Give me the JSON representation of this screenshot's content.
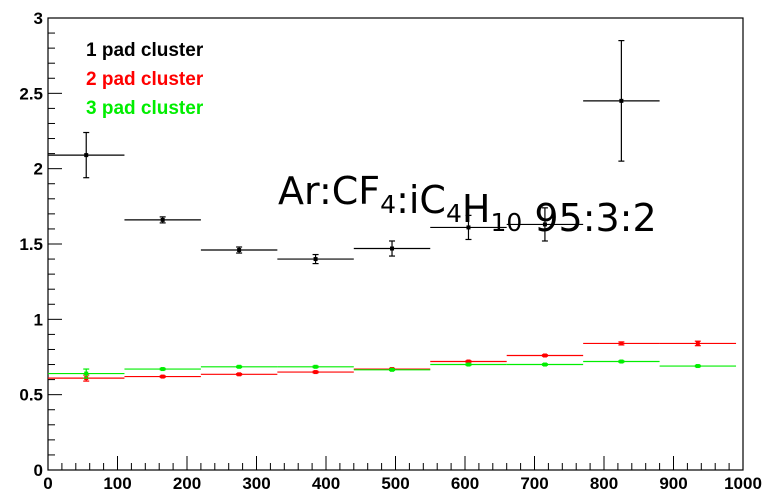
{
  "chart_data": {
    "type": "scatter",
    "title": "",
    "xlabel": "",
    "ylabel": "",
    "xlim": [
      0,
      1000
    ],
    "ylim": [
      0,
      3
    ],
    "x_ticks": [
      "0",
      "100",
      "200",
      "300",
      "400",
      "500",
      "600",
      "700",
      "800",
      "900",
      "1000"
    ],
    "y_ticks": [
      "0",
      "0.5",
      "1",
      "1.5",
      "2",
      "2.5",
      "3"
    ],
    "grid": false,
    "legend_position": "top-left",
    "annotation": {
      "parts": [
        {
          "text": "Ar:CF",
          "sub": false
        },
        {
          "text": "4",
          "sub": true
        },
        {
          "text": ":iC",
          "sub": false
        },
        {
          "text": "4",
          "sub": true
        },
        {
          "text": "H",
          "sub": false
        },
        {
          "text": "10",
          "sub": true
        },
        {
          "text": " 95:3:2",
          "sub": false
        }
      ]
    },
    "series": [
      {
        "name": "1 pad cluster",
        "color": "#000000",
        "points": [
          {
            "x": 55,
            "y": 2.09,
            "xerr": 55,
            "yerr": 0.15
          },
          {
            "x": 165,
            "y": 1.66,
            "xerr": 55,
            "yerr": 0.02
          },
          {
            "x": 275,
            "y": 1.46,
            "xerr": 55,
            "yerr": 0.02
          },
          {
            "x": 385,
            "y": 1.4,
            "xerr": 55,
            "yerr": 0.03
          },
          {
            "x": 495,
            "y": 1.47,
            "xerr": 55,
            "yerr": 0.05
          },
          {
            "x": 605,
            "y": 1.61,
            "xerr": 55,
            "yerr": 0.08
          },
          {
            "x": 715,
            "y": 1.63,
            "xerr": 55,
            "yerr": 0.11
          },
          {
            "x": 825,
            "y": 2.45,
            "xerr": 55,
            "yerr": 0.4
          }
        ]
      },
      {
        "name": "2 pad cluster",
        "color": "#ff0000",
        "points": [
          {
            "x": 55,
            "y": 0.61,
            "xerr": 55,
            "yerr": 0.02
          },
          {
            "x": 165,
            "y": 0.62,
            "xerr": 55,
            "yerr": 0.005
          },
          {
            "x": 275,
            "y": 0.635,
            "xerr": 55,
            "yerr": 0.005
          },
          {
            "x": 385,
            "y": 0.65,
            "xerr": 55,
            "yerr": 0.005
          },
          {
            "x": 495,
            "y": 0.67,
            "xerr": 55,
            "yerr": 0.005
          },
          {
            "x": 605,
            "y": 0.72,
            "xerr": 55,
            "yerr": 0.005
          },
          {
            "x": 715,
            "y": 0.76,
            "xerr": 55,
            "yerr": 0.005
          },
          {
            "x": 825,
            "y": 0.84,
            "xerr": 55,
            "yerr": 0.01
          },
          {
            "x": 935,
            "y": 0.84,
            "xerr": 55,
            "yerr": 0.015
          }
        ]
      },
      {
        "name": "3 pad cluster",
        "color": "#00ee00",
        "points": [
          {
            "x": 55,
            "y": 0.64,
            "xerr": 55,
            "yerr": 0.03
          },
          {
            "x": 165,
            "y": 0.67,
            "xerr": 55,
            "yerr": 0.005
          },
          {
            "x": 275,
            "y": 0.685,
            "xerr": 55,
            "yerr": 0.005
          },
          {
            "x": 385,
            "y": 0.685,
            "xerr": 55,
            "yerr": 0.005
          },
          {
            "x": 495,
            "y": 0.665,
            "xerr": 55,
            "yerr": 0.005
          },
          {
            "x": 605,
            "y": 0.7,
            "xerr": 55,
            "yerr": 0.005
          },
          {
            "x": 715,
            "y": 0.7,
            "xerr": 55,
            "yerr": 0.005
          },
          {
            "x": 825,
            "y": 0.72,
            "xerr": 55,
            "yerr": 0.005
          },
          {
            "x": 935,
            "y": 0.69,
            "xerr": 55,
            "yerr": 0.005
          }
        ]
      }
    ]
  }
}
